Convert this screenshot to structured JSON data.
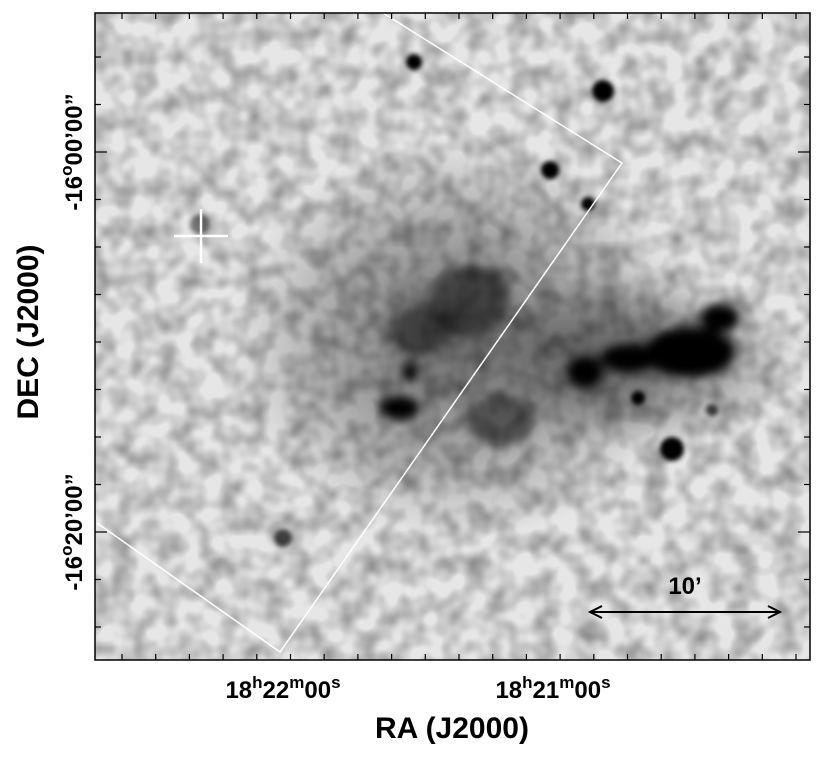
{
  "figure": {
    "x_label": "RA (J2000)",
    "y_label": "DEC (J2000)",
    "x_ticks": [
      [
        "18",
        "h",
        "22",
        "m",
        "00",
        "s"
      ],
      [
        "18",
        "h",
        "21",
        "m",
        "00",
        "s"
      ]
    ],
    "y_ticks": [
      [
        "-16",
        "o",
        "00’00”"
      ],
      [
        "-16",
        "o",
        "20’00”"
      ]
    ],
    "scale_bar": "10’"
  }
}
